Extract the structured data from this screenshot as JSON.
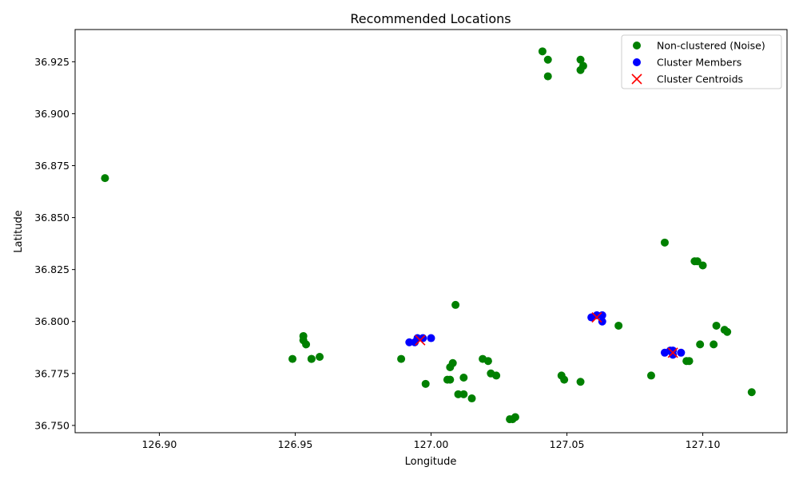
{
  "chart_data": {
    "type": "scatter",
    "title": "Recommended Locations",
    "xlabel": "Longitude",
    "ylabel": "Latitude",
    "xlim": [
      126.869,
      127.131
    ],
    "ylim": [
      36.7465,
      36.9405
    ],
    "x_ticks": [
      {
        "value": 126.9,
        "label": "126.90"
      },
      {
        "value": 126.95,
        "label": "126.95"
      },
      {
        "value": 127.0,
        "label": "127.00"
      },
      {
        "value": 127.05,
        "label": "127.05"
      },
      {
        "value": 127.1,
        "label": "127.10"
      }
    ],
    "y_ticks": [
      {
        "value": 36.75,
        "label": "36.750"
      },
      {
        "value": 36.775,
        "label": "36.775"
      },
      {
        "value": 36.8,
        "label": "36.800"
      },
      {
        "value": 36.825,
        "label": "36.825"
      },
      {
        "value": 36.85,
        "label": "36.850"
      },
      {
        "value": 36.875,
        "label": "36.875"
      },
      {
        "value": 36.9,
        "label": "36.900"
      },
      {
        "value": 36.925,
        "label": "36.925"
      }
    ],
    "grid": false,
    "legend_position": "top-right",
    "series": [
      {
        "name": "Non-clustered (Noise)",
        "marker": "circle",
        "color": "#008000",
        "points": [
          [
            127.041,
            36.93
          ],
          [
            127.043,
            36.926
          ],
          [
            127.055,
            36.926
          ],
          [
            127.056,
            36.923
          ],
          [
            127.055,
            36.921
          ],
          [
            127.043,
            36.918
          ],
          [
            126.88,
            36.869
          ],
          [
            127.086,
            36.838
          ],
          [
            127.097,
            36.829
          ],
          [
            127.098,
            36.829
          ],
          [
            127.1,
            36.827
          ],
          [
            127.009,
            36.808
          ],
          [
            127.069,
            36.798
          ],
          [
            127.105,
            36.798
          ],
          [
            127.108,
            36.796
          ],
          [
            127.109,
            36.795
          ],
          [
            126.953,
            36.793
          ],
          [
            126.953,
            36.791
          ],
          [
            126.954,
            36.789
          ],
          [
            127.099,
            36.789
          ],
          [
            127.104,
            36.789
          ],
          [
            127.094,
            36.781
          ],
          [
            127.095,
            36.781
          ],
          [
            126.949,
            36.782
          ],
          [
            126.956,
            36.782
          ],
          [
            126.956,
            36.782
          ],
          [
            126.959,
            36.783
          ],
          [
            126.989,
            36.782
          ],
          [
            127.008,
            36.78
          ],
          [
            127.007,
            36.778
          ],
          [
            127.019,
            36.782
          ],
          [
            127.021,
            36.781
          ],
          [
            127.022,
            36.775
          ],
          [
            127.024,
            36.774
          ],
          [
            127.048,
            36.774
          ],
          [
            127.049,
            36.772
          ],
          [
            127.081,
            36.774
          ],
          [
            127.006,
            36.772
          ],
          [
            127.007,
            36.772
          ],
          [
            127.012,
            36.773
          ],
          [
            126.998,
            36.77
          ],
          [
            127.055,
            36.771
          ],
          [
            127.01,
            36.765
          ],
          [
            127.012,
            36.765
          ],
          [
            127.015,
            36.763
          ],
          [
            127.118,
            36.766
          ],
          [
            127.029,
            36.753
          ],
          [
            127.03,
            36.753
          ],
          [
            127.031,
            36.754
          ]
        ]
      },
      {
        "name": "Cluster Members",
        "marker": "circle",
        "color": "#0000ff",
        "points": [
          [
            127.059,
            36.802
          ],
          [
            127.061,
            36.803
          ],
          [
            127.063,
            36.803
          ],
          [
            127.063,
            36.8
          ],
          [
            126.992,
            36.79
          ],
          [
            126.994,
            36.79
          ],
          [
            126.995,
            36.792
          ],
          [
            126.997,
            36.792
          ],
          [
            127.0,
            36.792
          ],
          [
            127.086,
            36.785
          ],
          [
            127.088,
            36.786
          ],
          [
            127.089,
            36.786
          ],
          [
            127.089,
            36.784
          ],
          [
            127.092,
            36.785
          ]
        ]
      },
      {
        "name": "Cluster Centroids",
        "marker": "x",
        "color": "#ff0000",
        "points": [
          [
            127.061,
            36.802
          ],
          [
            126.996,
            36.791
          ],
          [
            127.089,
            36.785
          ]
        ]
      }
    ]
  }
}
